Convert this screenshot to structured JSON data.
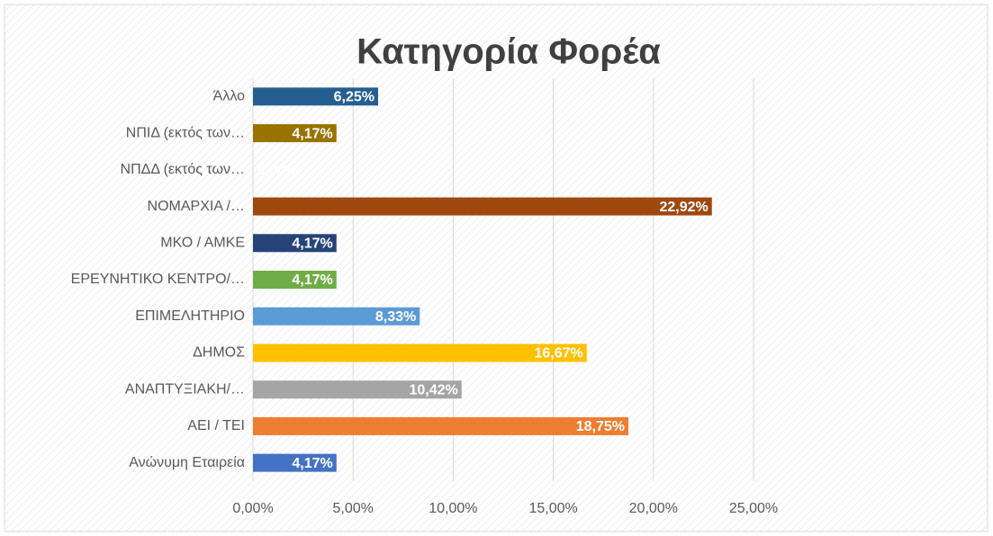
{
  "chart_data": {
    "type": "barh",
    "title": "Κατηγορία Φορέα",
    "categories": [
      "Ανώνυμη Εταιρεία",
      "ΑΕΙ / ΤΕΙ",
      "ΑΝΑΠΤΥΞΙΑΚΗ/…",
      "ΔΗΜΟΣ",
      "ΕΠΙΜΕΛΗΤΗΡΙΟ",
      "ΕΡΕΥΝΗΤΙΚΟ ΚΕΝΤΡΟ/…",
      "ΜΚΟ / ΑΜΚΕ",
      "ΝΟΜΑΡΧΙΑ /…",
      "ΝΠΔΔ (εκτός των…",
      "ΝΠΙΔ (εκτός των…",
      "Άλλο"
    ],
    "values": [
      4.17,
      18.75,
      10.42,
      16.67,
      8.33,
      4.17,
      4.17,
      22.92,
      0,
      4.17,
      6.25
    ],
    "value_labels": [
      "4,17%",
      "18,75%",
      "10,42%",
      "16,67%",
      "8,33%",
      "4,17%",
      "4,17%",
      "22,92%",
      "0,00%",
      "4,17%",
      "6,25%"
    ],
    "colors": [
      "#4472c4",
      "#ed7d31",
      "#a5a5a5",
      "#ffc000",
      "#5b9bd5",
      "#70ad47",
      "#264478",
      "#9e480e",
      "#636363",
      "#997300",
      "#255e91"
    ],
    "xlim": [
      0,
      25
    ],
    "xticks": [
      {
        "value": 0,
        "label": "0,00%"
      },
      {
        "value": 5,
        "label": "5,00%"
      },
      {
        "value": 10,
        "label": "10,00%"
      },
      {
        "value": 15,
        "label": "15,00%"
      },
      {
        "value": 20,
        "label": "20,00%"
      },
      {
        "value": 25,
        "label": "25,00%"
      }
    ],
    "grid": true
  }
}
